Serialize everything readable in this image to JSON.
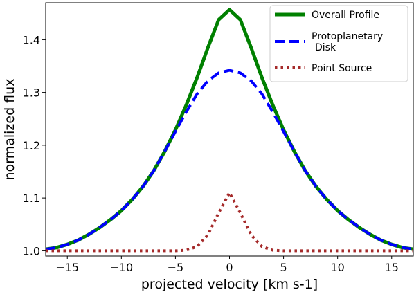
{
  "chart_data": {
    "type": "line",
    "title": "",
    "xlabel": "projected velocity [km s-1]",
    "ylabel": "normalized flux",
    "xlim": [
      -17,
      17
    ],
    "ylim": [
      0.99,
      1.47
    ],
    "xticks": [
      -15,
      -10,
      -5,
      0,
      5,
      10,
      15
    ],
    "xtick_labels": [
      "−15",
      "−10",
      "−5",
      "0",
      "5",
      "10",
      "15"
    ],
    "yticks": [
      1.0,
      1.1,
      1.2,
      1.3,
      1.4
    ],
    "ytick_labels": [
      "1.0",
      "1.1",
      "1.2",
      "1.3",
      "1.4"
    ],
    "grid": false,
    "legend_position": "top-right",
    "series": [
      {
        "name": "Overall Profile",
        "style": "solid",
        "color": "#008000",
        "x": [
          -17,
          -16,
          -15,
          -14,
          -13,
          -12,
          -11,
          -10,
          -9,
          -8,
          -7,
          -6,
          -5,
          -4,
          -3,
          -2,
          -1,
          0,
          1,
          2,
          3,
          4,
          5,
          6,
          7,
          8,
          9,
          10,
          11,
          12,
          13,
          14,
          15,
          16,
          17
        ],
        "y": [
          1.003,
          1.006,
          1.012,
          1.02,
          1.031,
          1.044,
          1.059,
          1.076,
          1.097,
          1.122,
          1.152,
          1.188,
          1.229,
          1.276,
          1.328,
          1.385,
          1.438,
          1.457,
          1.438,
          1.385,
          1.328,
          1.276,
          1.229,
          1.188,
          1.152,
          1.122,
          1.097,
          1.076,
          1.059,
          1.044,
          1.031,
          1.02,
          1.012,
          1.006,
          1.003
        ]
      },
      {
        "name": "Protoplanetary\nDisk",
        "style": "dashed",
        "color": "#0000ff",
        "x": [
          -17,
          -16,
          -15,
          -14,
          -13,
          -12,
          -11,
          -10,
          -9,
          -8,
          -7,
          -6,
          -5,
          -4,
          -3,
          -2,
          -1,
          0,
          1,
          2,
          3,
          4,
          5,
          6,
          7,
          8,
          9,
          10,
          11,
          12,
          13,
          14,
          15,
          16,
          17
        ],
        "y": [
          1.003,
          1.006,
          1.012,
          1.02,
          1.031,
          1.044,
          1.059,
          1.076,
          1.097,
          1.122,
          1.152,
          1.188,
          1.226,
          1.263,
          1.297,
          1.322,
          1.337,
          1.342,
          1.337,
          1.322,
          1.297,
          1.263,
          1.226,
          1.188,
          1.152,
          1.122,
          1.097,
          1.076,
          1.059,
          1.044,
          1.031,
          1.02,
          1.012,
          1.006,
          1.003
        ]
      },
      {
        "name": "Point Source",
        "style": "dotted",
        "color": "#a52a2a",
        "x": [
          -17,
          -15,
          -10,
          -6,
          -5,
          -4,
          -3,
          -2,
          -1,
          0,
          1,
          2,
          3,
          4,
          5,
          6,
          10,
          15,
          17
        ],
        "y": [
          1.0,
          1.0,
          1.0,
          1.0,
          1.0,
          1.001,
          1.008,
          1.03,
          1.072,
          1.11,
          1.072,
          1.03,
          1.008,
          1.001,
          1.0,
          1.0,
          1.0,
          1.0,
          1.0
        ]
      }
    ]
  }
}
